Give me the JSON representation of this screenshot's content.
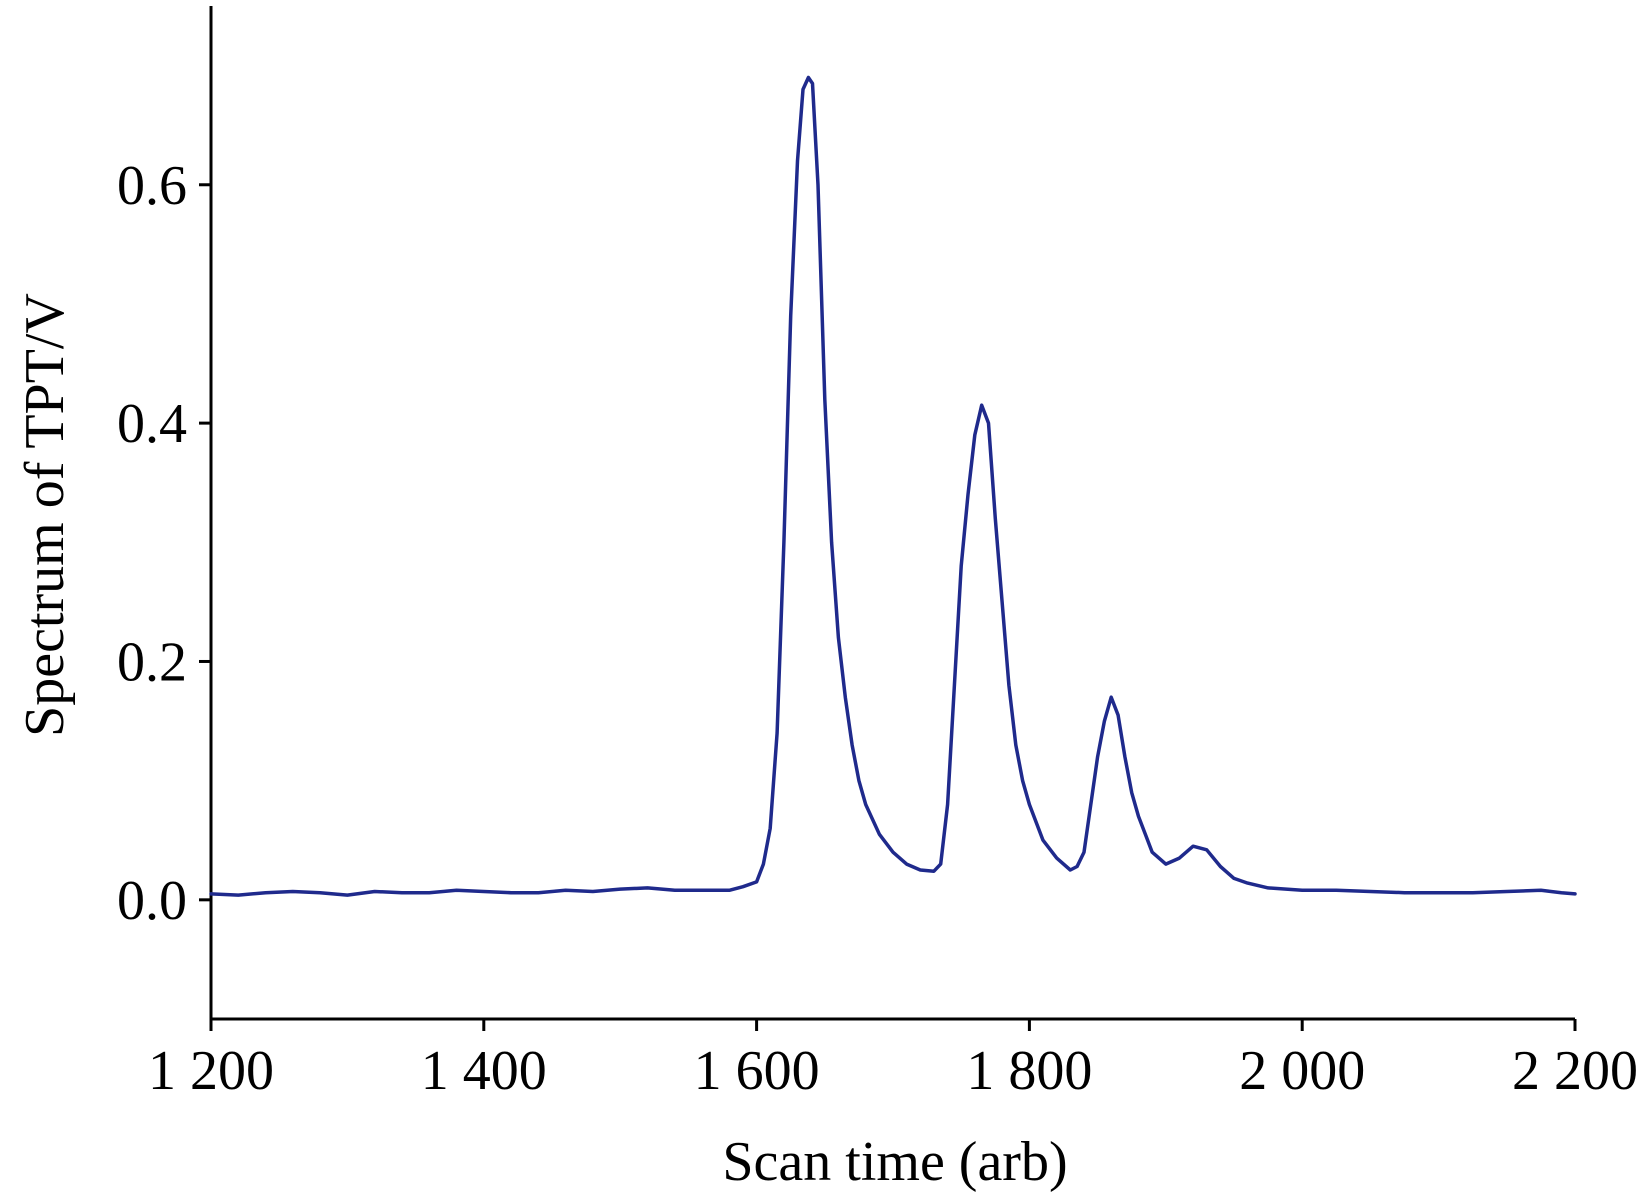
{
  "chart_data": {
    "type": "line",
    "title": "",
    "xlabel": "Scan time (arb)",
    "ylabel": "Spectrum of TPT/V",
    "xlim": [
      1200,
      2200
    ],
    "ylim": [
      -0.1,
      0.75
    ],
    "x_ticks": [
      1200,
      1400,
      1600,
      1800,
      2000,
      2200
    ],
    "x_tick_labels": [
      "1 200",
      "1 400",
      "1 600",
      "1 800",
      "2 000",
      "2 200"
    ],
    "y_ticks": [
      0.0,
      0.2,
      0.4,
      0.6
    ],
    "y_tick_labels": [
      "0.0",
      "0.2",
      "0.4",
      "0.6"
    ],
    "grid": false,
    "series": [
      {
        "color": "#1f2a8c",
        "points": [
          [
            1200,
            0.005
          ],
          [
            1220,
            0.004
          ],
          [
            1240,
            0.006
          ],
          [
            1260,
            0.007
          ],
          [
            1280,
            0.006
          ],
          [
            1300,
            0.004
          ],
          [
            1320,
            0.007
          ],
          [
            1340,
            0.006
          ],
          [
            1360,
            0.006
          ],
          [
            1380,
            0.008
          ],
          [
            1400,
            0.007
          ],
          [
            1420,
            0.006
          ],
          [
            1440,
            0.006
          ],
          [
            1460,
            0.008
          ],
          [
            1480,
            0.007
          ],
          [
            1500,
            0.009
          ],
          [
            1520,
            0.01
          ],
          [
            1540,
            0.008
          ],
          [
            1560,
            0.008
          ],
          [
            1580,
            0.008
          ],
          [
            1590,
            0.011
          ],
          [
            1600,
            0.015
          ],
          [
            1605,
            0.03
          ],
          [
            1610,
            0.06
          ],
          [
            1615,
            0.14
          ],
          [
            1620,
            0.3
          ],
          [
            1625,
            0.49
          ],
          [
            1630,
            0.62
          ],
          [
            1634,
            0.68
          ],
          [
            1638,
            0.69
          ],
          [
            1641,
            0.685
          ],
          [
            1645,
            0.6
          ],
          [
            1650,
            0.42
          ],
          [
            1655,
            0.3
          ],
          [
            1660,
            0.22
          ],
          [
            1665,
            0.17
          ],
          [
            1670,
            0.13
          ],
          [
            1675,
            0.1
          ],
          [
            1680,
            0.08
          ],
          [
            1690,
            0.055
          ],
          [
            1700,
            0.04
          ],
          [
            1710,
            0.03
          ],
          [
            1720,
            0.025
          ],
          [
            1730,
            0.024
          ],
          [
            1735,
            0.03
          ],
          [
            1740,
            0.08
          ],
          [
            1745,
            0.18
          ],
          [
            1750,
            0.28
          ],
          [
            1755,
            0.34
          ],
          [
            1760,
            0.39
          ],
          [
            1765,
            0.415
          ],
          [
            1770,
            0.4
          ],
          [
            1775,
            0.32
          ],
          [
            1780,
            0.25
          ],
          [
            1785,
            0.18
          ],
          [
            1790,
            0.13
          ],
          [
            1795,
            0.1
          ],
          [
            1800,
            0.08
          ],
          [
            1810,
            0.05
          ],
          [
            1820,
            0.035
          ],
          [
            1830,
            0.025
          ],
          [
            1835,
            0.028
          ],
          [
            1840,
            0.04
          ],
          [
            1845,
            0.08
          ],
          [
            1850,
            0.12
          ],
          [
            1855,
            0.15
          ],
          [
            1860,
            0.17
          ],
          [
            1865,
            0.155
          ],
          [
            1870,
            0.12
          ],
          [
            1875,
            0.09
          ],
          [
            1880,
            0.07
          ],
          [
            1890,
            0.04
          ],
          [
            1900,
            0.03
          ],
          [
            1910,
            0.035
          ],
          [
            1920,
            0.045
          ],
          [
            1930,
            0.042
          ],
          [
            1940,
            0.028
          ],
          [
            1950,
            0.018
          ],
          [
            1960,
            0.014
          ],
          [
            1975,
            0.01
          ],
          [
            2000,
            0.008
          ],
          [
            2025,
            0.008
          ],
          [
            2050,
            0.007
          ],
          [
            2075,
            0.006
          ],
          [
            2100,
            0.006
          ],
          [
            2125,
            0.006
          ],
          [
            2150,
            0.007
          ],
          [
            2175,
            0.008
          ],
          [
            2190,
            0.006
          ],
          [
            2200,
            0.005
          ]
        ]
      }
    ]
  }
}
